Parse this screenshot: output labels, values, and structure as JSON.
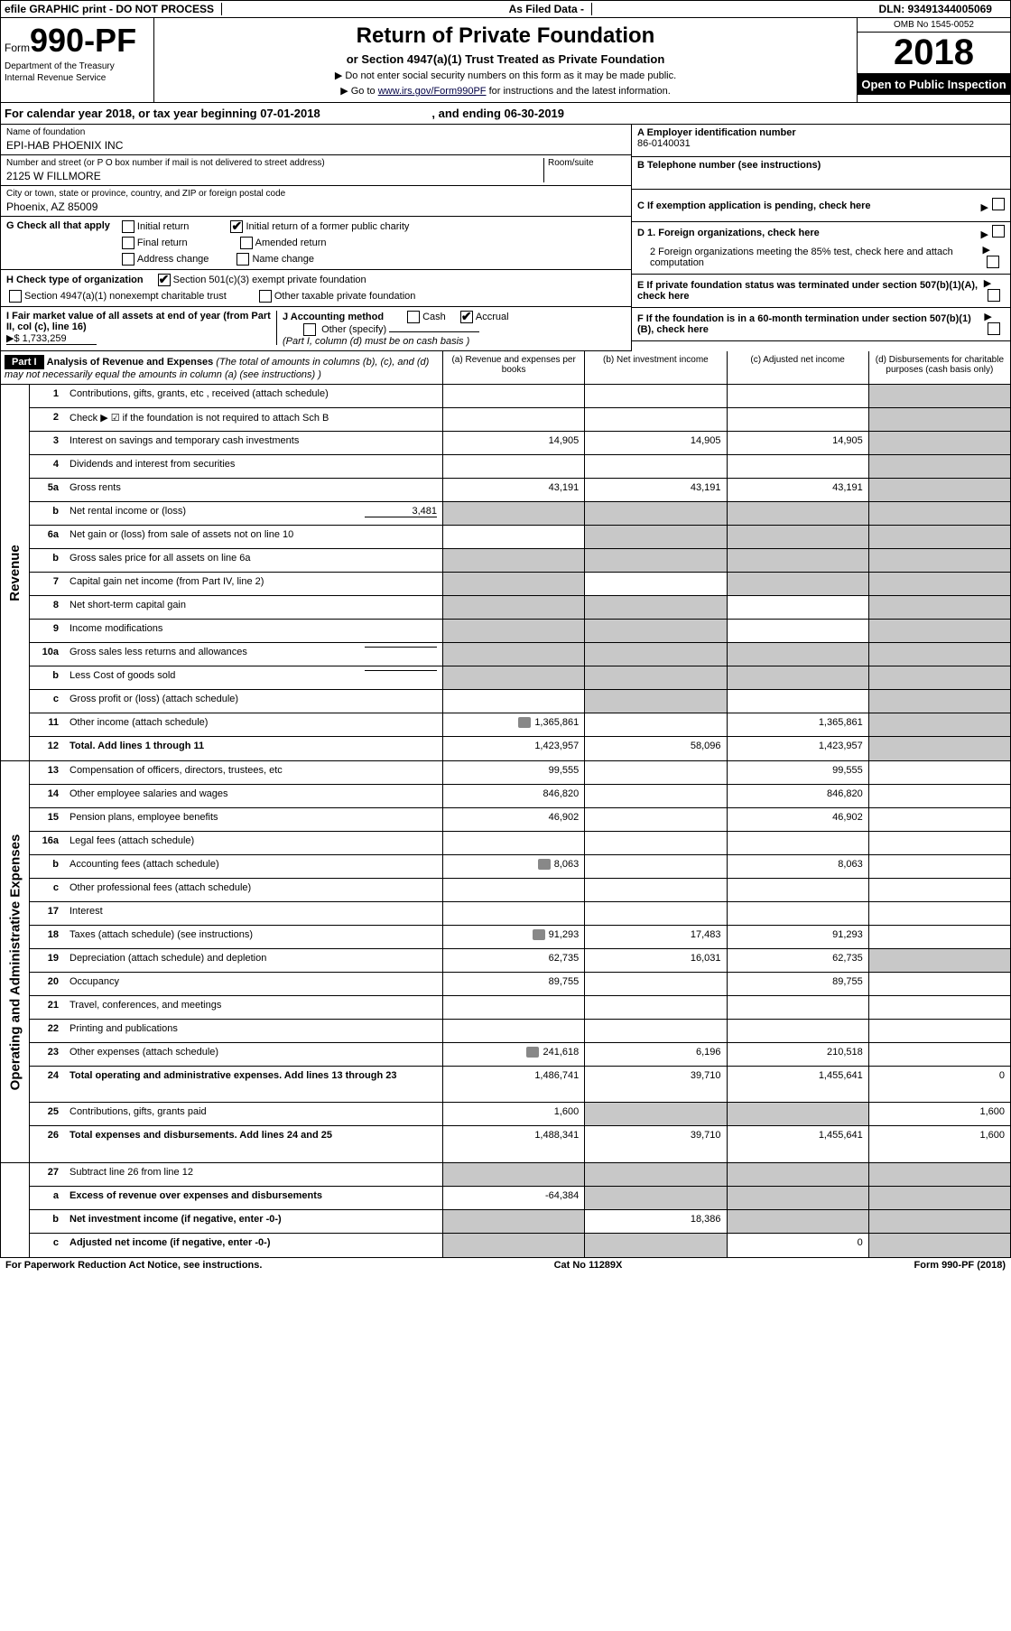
{
  "topbar": {
    "efile": "efile GRAPHIC print - DO NOT PROCESS",
    "asfiled": "As Filed Data -",
    "dln": "DLN: 93491344005069"
  },
  "formId": {
    "prefix": "Form",
    "number": "990-PF",
    "dept1": "Department of the Treasury",
    "dept2": "Internal Revenue Service"
  },
  "title": {
    "main": "Return of Private Foundation",
    "sub": "or Section 4947(a)(1) Trust Treated as Private Foundation",
    "line1": "▶ Do not enter social security numbers on this form as it may be made public.",
    "line2": "▶ Go to ",
    "link": "www.irs.gov/Form990PF",
    "line2end": " for instructions and the latest information."
  },
  "yearBox": {
    "omb": "OMB No 1545-0052",
    "year": "2018",
    "open": "Open to Public Inspection"
  },
  "calRow": {
    "text": "For calendar year 2018, or tax year beginning 07-01-2018",
    "end": ", and ending 06-30-2019"
  },
  "leftInfo": {
    "nameLabel": "Name of foundation",
    "name": "EPI-HAB PHOENIX INC",
    "addrLabel": "Number and street (or P O  box number if mail is not delivered to street address)",
    "roomLabel": "Room/suite",
    "addr": "2125 W FILLMORE",
    "cityLabel": "City or town, state or province, country, and ZIP or foreign postal code",
    "city": "Phoenix, AZ  85009"
  },
  "rightInfo": {
    "A_label": "A Employer identification number",
    "A_val": "86-0140031",
    "B_label": "B Telephone number (see instructions)",
    "C_label": "C If exemption application is pending, check here",
    "D1": "D 1. Foreign organizations, check here",
    "D2": "2  Foreign organizations meeting the 85% test, check here and attach computation",
    "E": "E  If private foundation status was terminated under section 507(b)(1)(A), check here",
    "F": "F  If the foundation is in a 60-month termination under section 507(b)(1)(B), check here"
  },
  "G": {
    "label": "G Check all that apply",
    "opts": [
      "Initial return",
      "Initial return of a former public charity",
      "Final return",
      "Amended return",
      "Address change",
      "Name change"
    ]
  },
  "H": {
    "label": "H Check type of organization",
    "opt1": "Section 501(c)(3) exempt private foundation",
    "opt2": "Section 4947(a)(1) nonexempt charitable trust",
    "opt3": "Other taxable private foundation"
  },
  "I": {
    "label1": "I Fair market value of all assets at end of year (from Part II, col  (c), line 16)",
    "val": "▶$  1,733,259"
  },
  "J": {
    "label": "J Accounting method",
    "cash": "Cash",
    "accrual": "Accrual",
    "other": "Other (specify)",
    "note": "(Part I, column (d) must be on cash basis )"
  },
  "part1": {
    "badge": "Part I",
    "title": "Analysis of Revenue and Expenses",
    "titleNote": "(The total of amounts in columns (b), (c), and (d) may not necessarily equal the amounts in column (a) (see instructions) )",
    "colA": "(a)  Revenue and expenses per books",
    "colB": "(b)  Net investment income",
    "colC": "(c)  Adjusted net income",
    "colD": "(d)  Disbursements for charitable purposes (cash basis only)"
  },
  "sideRevenue": "Revenue",
  "sideExpenses": "Operating and Administrative Expenses",
  "rows": [
    {
      "num": "1",
      "desc": "Contributions, gifts, grants, etc , received (attach schedule)",
      "a": "",
      "b": "",
      "c": "",
      "d": "shaded"
    },
    {
      "num": "2",
      "desc": "Check ▶ ☑ if the foundation is not required to attach Sch  B",
      "dots": true,
      "a": "",
      "b": "",
      "c": "",
      "d": "shaded"
    },
    {
      "num": "3",
      "desc": "Interest on savings and temporary cash investments",
      "a": "14,905",
      "b": "14,905",
      "c": "14,905",
      "d": "shaded"
    },
    {
      "num": "4",
      "desc": "Dividends and interest from securities",
      "dots": true,
      "a": "",
      "b": "",
      "c": "",
      "d": "shaded"
    },
    {
      "num": "5a",
      "desc": "Gross rents",
      "dots": true,
      "a": "43,191",
      "b": "43,191",
      "c": "43,191",
      "d": "shaded"
    },
    {
      "num": "b",
      "desc": "Net rental income or (loss)",
      "inline": "3,481",
      "a": "shaded",
      "b": "shaded",
      "c": "shaded",
      "d": "shaded"
    },
    {
      "num": "6a",
      "desc": "Net gain or (loss) from sale of assets not on line 10",
      "a": "",
      "b": "shaded",
      "c": "shaded",
      "d": "shaded"
    },
    {
      "num": "b",
      "desc": "Gross sales price for all assets on line 6a",
      "a": "shaded",
      "b": "shaded",
      "c": "shaded",
      "d": "shaded"
    },
    {
      "num": "7",
      "desc": "Capital gain net income (from Part IV, line 2)",
      "dots": true,
      "a": "shaded",
      "b": "",
      "c": "shaded",
      "d": "shaded"
    },
    {
      "num": "8",
      "desc": "Net short-term capital gain",
      "dots": true,
      "a": "shaded",
      "b": "shaded",
      "c": "",
      "d": "shaded"
    },
    {
      "num": "9",
      "desc": "Income modifications",
      "dots": true,
      "a": "shaded",
      "b": "shaded",
      "c": "",
      "d": "shaded"
    },
    {
      "num": "10a",
      "desc": "Gross sales less returns and allowances",
      "inline": "",
      "a": "shaded",
      "b": "shaded",
      "c": "shaded",
      "d": "shaded"
    },
    {
      "num": "b",
      "desc": "Less  Cost of goods sold",
      "dots": true,
      "inline": "",
      "a": "shaded",
      "b": "shaded",
      "c": "shaded",
      "d": "shaded"
    },
    {
      "num": "c",
      "desc": "Gross profit or (loss) (attach schedule)",
      "dots": true,
      "a": "",
      "b": "shaded",
      "c": "",
      "d": "shaded"
    },
    {
      "num": "11",
      "desc": "Other income (attach schedule)",
      "dots": true,
      "icon": true,
      "a": "1,365,861",
      "b": "",
      "c": "1,365,861",
      "d": "shaded"
    },
    {
      "num": "12",
      "desc": "Total. Add lines 1 through 11",
      "dots": true,
      "bold": true,
      "a": "1,423,957",
      "b": "58,096",
      "c": "1,423,957",
      "d": "shaded"
    }
  ],
  "expRows": [
    {
      "num": "13",
      "desc": "Compensation of officers, directors, trustees, etc",
      "a": "99,555",
      "b": "",
      "c": "99,555",
      "d": ""
    },
    {
      "num": "14",
      "desc": "Other employee salaries and wages",
      "dots": true,
      "a": "846,820",
      "b": "",
      "c": "846,820",
      "d": ""
    },
    {
      "num": "15",
      "desc": "Pension plans, employee benefits",
      "dots": true,
      "a": "46,902",
      "b": "",
      "c": "46,902",
      "d": ""
    },
    {
      "num": "16a",
      "desc": "Legal fees (attach schedule)",
      "dots": true,
      "a": "",
      "b": "",
      "c": "",
      "d": ""
    },
    {
      "num": "b",
      "desc": "Accounting fees (attach schedule)",
      "dots": true,
      "icon": true,
      "a": "8,063",
      "b": "",
      "c": "8,063",
      "d": ""
    },
    {
      "num": "c",
      "desc": "Other professional fees (attach schedule)",
      "dots": true,
      "a": "",
      "b": "",
      "c": "",
      "d": ""
    },
    {
      "num": "17",
      "desc": "Interest",
      "dots": true,
      "a": "",
      "b": "",
      "c": "",
      "d": ""
    },
    {
      "num": "18",
      "desc": "Taxes (attach schedule) (see instructions)",
      "dots": true,
      "icon": true,
      "a": "91,293",
      "b": "17,483",
      "c": "91,293",
      "d": ""
    },
    {
      "num": "19",
      "desc": "Depreciation (attach schedule) and depletion",
      "dots": true,
      "a": "62,735",
      "b": "16,031",
      "c": "62,735",
      "d": "shaded"
    },
    {
      "num": "20",
      "desc": "Occupancy",
      "dots": true,
      "a": "89,755",
      "b": "",
      "c": "89,755",
      "d": ""
    },
    {
      "num": "21",
      "desc": "Travel, conferences, and meetings",
      "dots": true,
      "a": "",
      "b": "",
      "c": "",
      "d": ""
    },
    {
      "num": "22",
      "desc": "Printing and publications",
      "dots": true,
      "a": "",
      "b": "",
      "c": "",
      "d": ""
    },
    {
      "num": "23",
      "desc": "Other expenses (attach schedule)",
      "dots": true,
      "icon": true,
      "a": "241,618",
      "b": "6,196",
      "c": "210,518",
      "d": ""
    },
    {
      "num": "24",
      "desc": "Total operating and administrative expenses. Add lines 13 through 23",
      "dots": true,
      "bold": true,
      "tall": true,
      "a": "1,486,741",
      "b": "39,710",
      "c": "1,455,641",
      "d": "0"
    },
    {
      "num": "25",
      "desc": "Contributions, gifts, grants paid",
      "dots": true,
      "a": "1,600",
      "b": "shaded",
      "c": "shaded",
      "d": "1,600"
    },
    {
      "num": "26",
      "desc": "Total expenses and disbursements. Add lines 24 and 25",
      "bold": true,
      "tall": true,
      "a": "1,488,341",
      "b": "39,710",
      "c": "1,455,641",
      "d": "1,600"
    }
  ],
  "bottomRows": [
    {
      "num": "27",
      "desc": "Subtract line 26 from line 12",
      "a": "shaded",
      "b": "shaded",
      "c": "shaded",
      "d": "shaded"
    },
    {
      "num": "a",
      "desc": "Excess of revenue over expenses and disbursements",
      "bold": true,
      "a": "-64,384",
      "b": "shaded",
      "c": "shaded",
      "d": "shaded"
    },
    {
      "num": "b",
      "desc": "Net investment income (if negative, enter -0-)",
      "bold": true,
      "a": "shaded",
      "b": "18,386",
      "c": "shaded",
      "d": "shaded"
    },
    {
      "num": "c",
      "desc": "Adjusted net income (if negative, enter -0-)",
      "bold": true,
      "dots": true,
      "a": "shaded",
      "b": "shaded",
      "c": "0",
      "d": "shaded"
    }
  ],
  "footer": {
    "left": "For Paperwork Reduction Act Notice, see instructions.",
    "mid": "Cat  No  11289X",
    "right": "Form 990-PF (2018)"
  }
}
